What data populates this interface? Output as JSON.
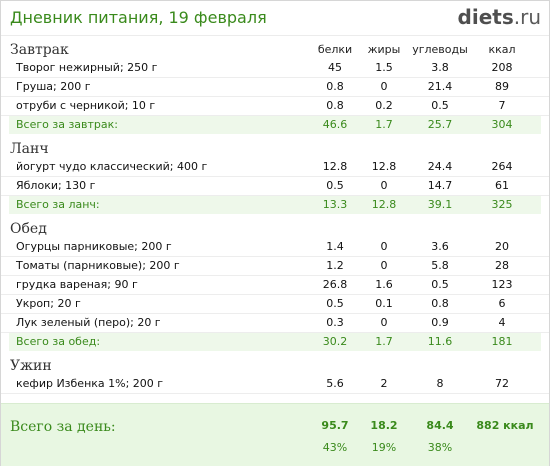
{
  "header": {
    "title": "Дневник питания, 19 февраля",
    "logo_main": "diets",
    "logo_tld": ".ru"
  },
  "columns": {
    "protein": "белки",
    "fat": "жиры",
    "carbs": "углеводы",
    "kcal": "ккал"
  },
  "sections": [
    {
      "title": "Завтрак",
      "items": [
        {
          "name": "Творог нежирный; 250 г",
          "protein": "45",
          "fat": "1.5",
          "carbs": "3.8",
          "kcal": "208"
        },
        {
          "name": "Груша; 200 г",
          "protein": "0.8",
          "fat": "0",
          "carbs": "21.4",
          "kcal": "89"
        },
        {
          "name": "отруби с черникой; 10 г",
          "protein": "0.8",
          "fat": "0.2",
          "carbs": "0.5",
          "kcal": "7"
        }
      ],
      "total": {
        "label": "Всего за завтрак:",
        "protein": "46.6",
        "fat": "1.7",
        "carbs": "25.7",
        "kcal": "304"
      }
    },
    {
      "title": "Ланч",
      "items": [
        {
          "name": "йогурт чудо классический; 400 г",
          "protein": "12.8",
          "fat": "12.8",
          "carbs": "24.4",
          "kcal": "264"
        },
        {
          "name": "Яблоки; 130 г",
          "protein": "0.5",
          "fat": "0",
          "carbs": "14.7",
          "kcal": "61"
        }
      ],
      "total": {
        "label": "Всего за ланч:",
        "protein": "13.3",
        "fat": "12.8",
        "carbs": "39.1",
        "kcal": "325"
      }
    },
    {
      "title": "Обед",
      "items": [
        {
          "name": "Огурцы парниковые; 200 г",
          "protein": "1.4",
          "fat": "0",
          "carbs": "3.6",
          "kcal": "20"
        },
        {
          "name": "Томаты (парниковые); 200 г",
          "protein": "1.2",
          "fat": "0",
          "carbs": "5.8",
          "kcal": "28"
        },
        {
          "name": "грудка вареная; 90 г",
          "protein": "26.8",
          "fat": "1.6",
          "carbs": "0.5",
          "kcal": "123"
        },
        {
          "name": "Укроп; 20 г",
          "protein": "0.5",
          "fat": "0.1",
          "carbs": "0.8",
          "kcal": "6"
        },
        {
          "name": "Лук зеленый (перо); 20 г",
          "protein": "0.3",
          "fat": "0",
          "carbs": "0.9",
          "kcal": "4"
        }
      ],
      "total": {
        "label": "Всего за обед:",
        "protein": "30.2",
        "fat": "1.7",
        "carbs": "11.6",
        "kcal": "181"
      }
    },
    {
      "title": "Ужин",
      "items": [
        {
          "name": "кефир Избенка 1%; 200 г",
          "protein": "5.6",
          "fat": "2",
          "carbs": "8",
          "kcal": "72"
        }
      ]
    }
  ],
  "day_total": {
    "label": "Всего за день:",
    "protein": "95.7",
    "fat": "18.2",
    "carbs": "84.4",
    "kcal": "882 ккал",
    "protein_pct": "43%",
    "fat_pct": "19%",
    "carbs_pct": "38%"
  }
}
